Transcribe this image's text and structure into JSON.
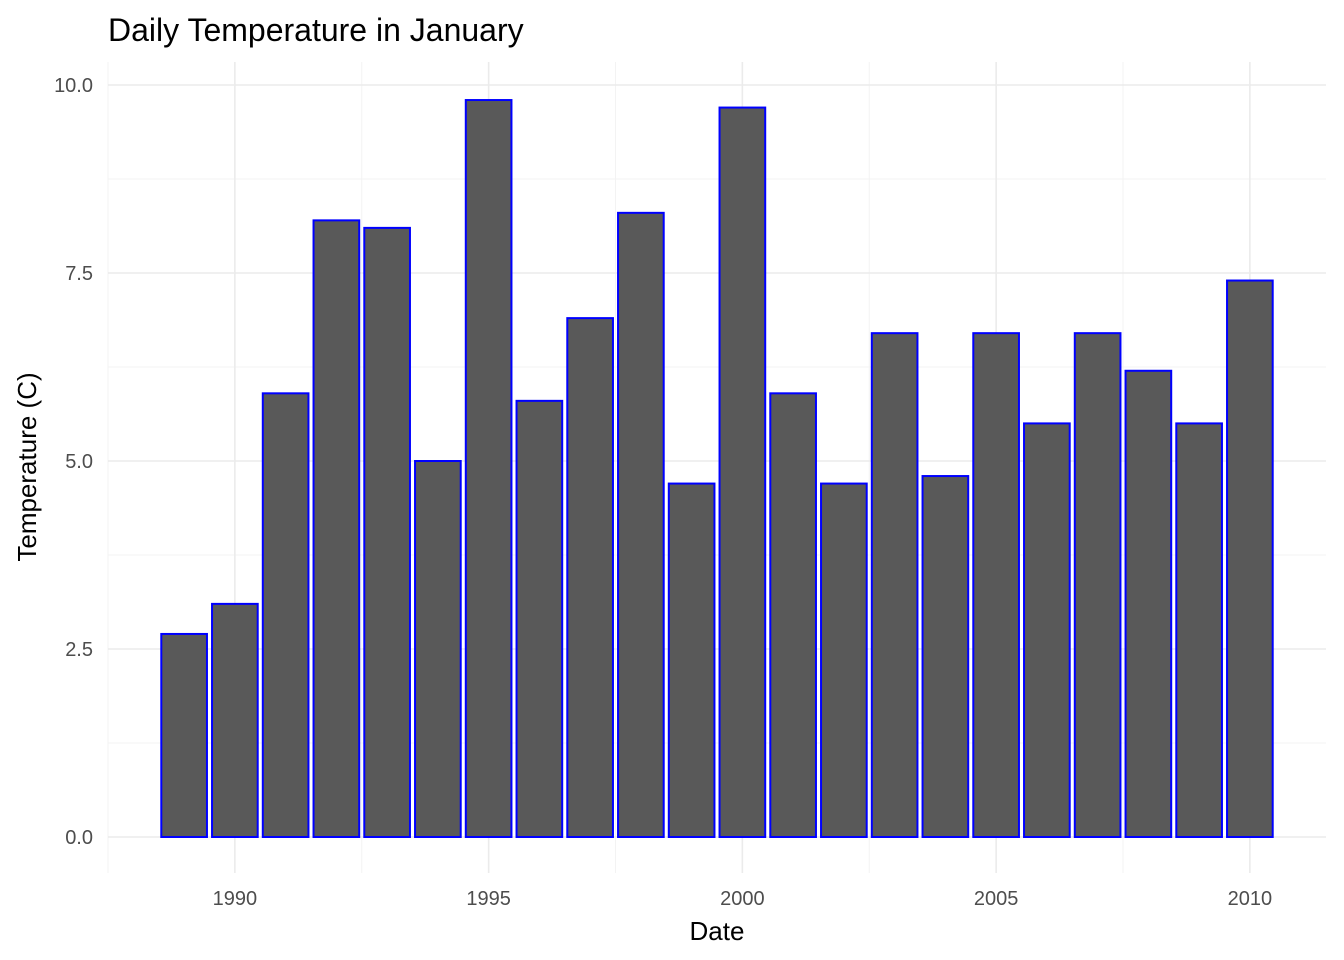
{
  "chart_data": {
    "type": "bar",
    "title": "Daily Temperature in January",
    "xlabel": "Date",
    "ylabel": "Temperature (C)",
    "x": [
      1989,
      1990,
      1991,
      1992,
      1993,
      1994,
      1995,
      1996,
      1997,
      1998,
      1999,
      2000,
      2001,
      2002,
      2003,
      2004,
      2005,
      2006,
      2007,
      2008,
      2009,
      2010
    ],
    "values": [
      2.7,
      3.1,
      5.9,
      8.2,
      8.1,
      5.0,
      9.8,
      5.8,
      6.9,
      8.3,
      4.7,
      9.7,
      5.9,
      4.7,
      6.7,
      4.8,
      6.7,
      5.5,
      6.7,
      6.2,
      5.5,
      7.4
    ],
    "x_ticks": [
      "1990",
      "1995",
      "2000",
      "2005",
      "2010"
    ],
    "y_ticks": [
      "0.0",
      "2.5",
      "5.0",
      "7.5",
      "10.0"
    ],
    "ylim": [
      0,
      10
    ],
    "xlim": [
      1987.5,
      2011.5
    ],
    "grid": true,
    "legend": "none",
    "colors": {
      "bar_fill": "#595959",
      "bar_outline": "#0000ff",
      "grid": "#ebebeb",
      "tick_text": "#4d4d4d",
      "background": "#ffffff"
    }
  }
}
